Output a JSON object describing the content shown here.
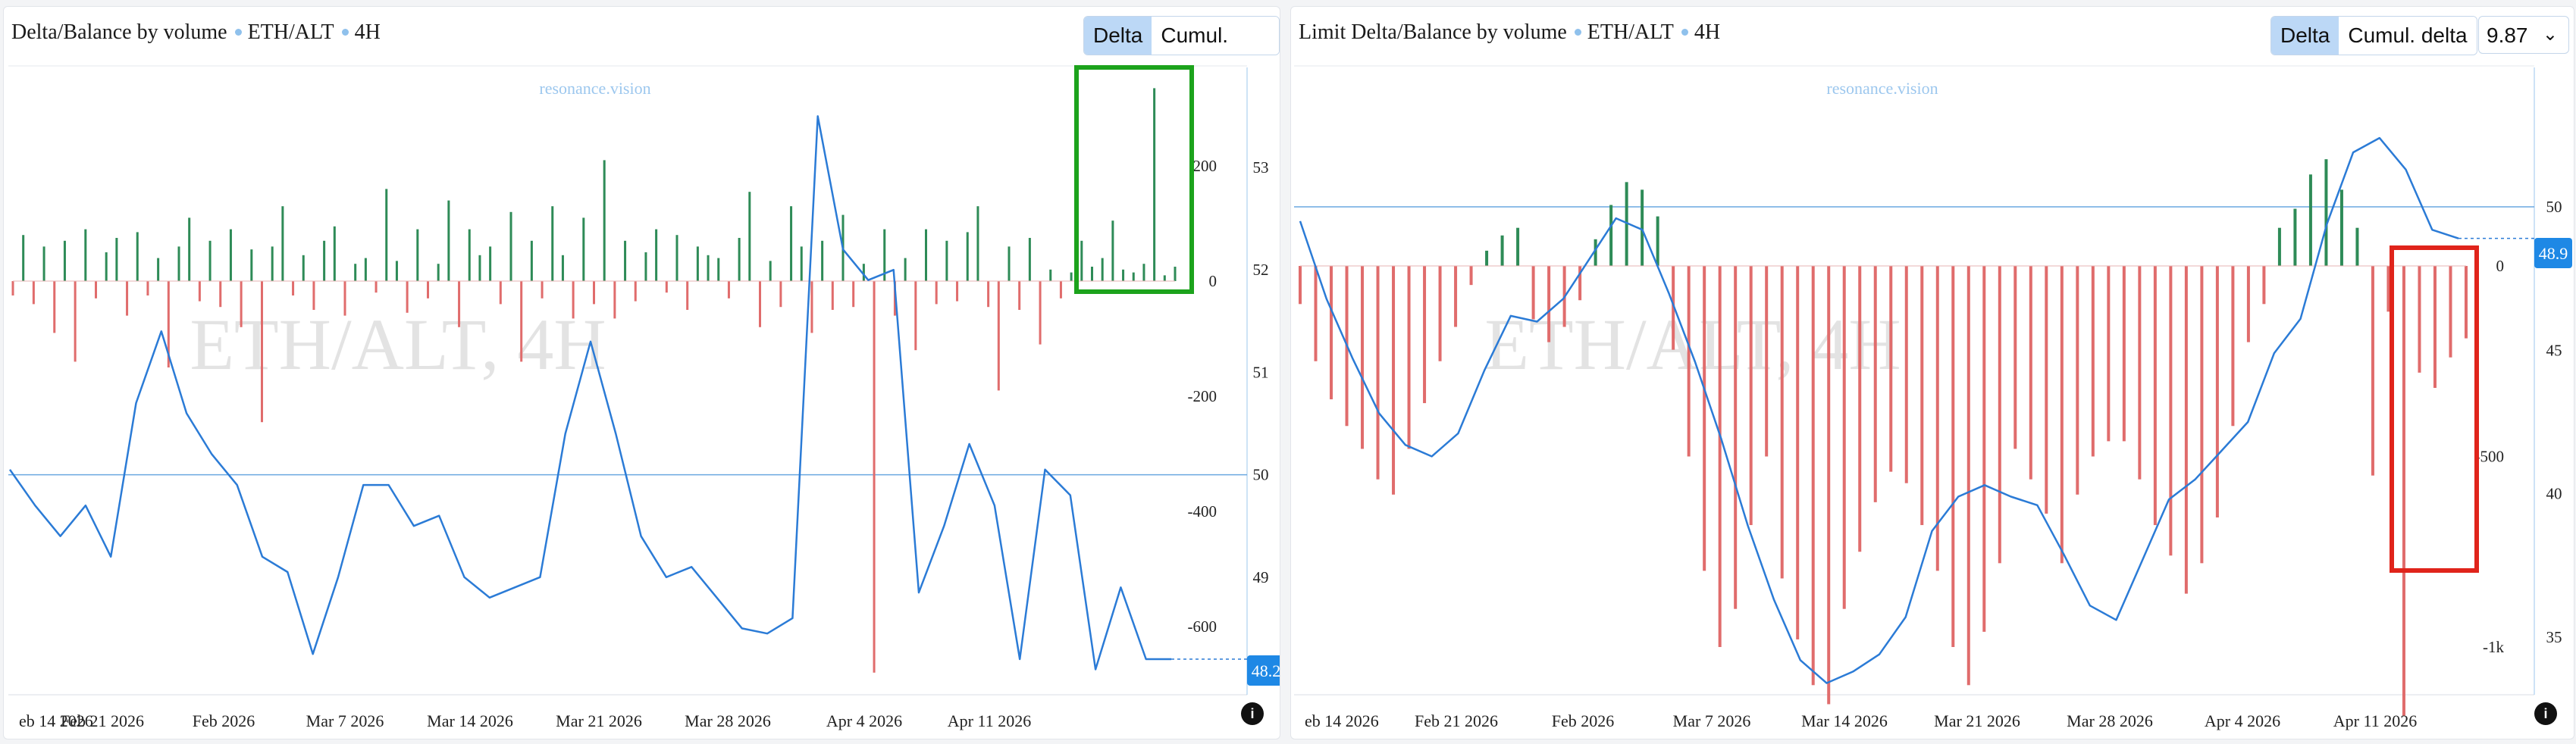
{
  "colors": {
    "up": "#2e8b57",
    "down": "#e06c6c",
    "line": "#2b7bd6",
    "hline": "#6aa8e0",
    "badge": "#1e88e5",
    "green_box": "#1ca31c",
    "red_box": "#e0241b",
    "watermark": "#e3e3e3",
    "brand": "#9cc7ee"
  },
  "panels": [
    {
      "title": "Delta/Balance by volume",
      "symbol": "ETH/ALT",
      "interval": "4H",
      "tabs": [
        {
          "label": "Delta",
          "active": true
        },
        {
          "label": "Cumul. delta",
          "active": false
        }
      ],
      "brand": "resonance.vision",
      "watermark": "ETH/ALT, 4H",
      "last_value": "48.2",
      "highlight": "green-box",
      "info_icon": "i",
      "chart_data": {
        "type": "bar+line",
        "x_labels": [
          "eb 14 2026",
          "Feb 21 2026",
          "Feb 2026",
          "Mar 7 2026",
          "Mar 14 2026",
          "Mar 21 2026",
          "Mar 28 2026",
          "Apr 4 2026",
          "Apr 11 2026"
        ],
        "delta_axis": {
          "ticks": [
            "200",
            "0",
            "-200",
            "-400",
            "-600"
          ],
          "range": [
            -680,
            330
          ]
        },
        "balance_axis": {
          "ticks": [
            "53",
            "52",
            "51",
            "50",
            "49",
            "48"
          ],
          "range": [
            47.9,
            53.8
          ]
        },
        "hline_balance": 50.0,
        "series": [
          {
            "name": "Delta (volume)",
            "kind": "bars",
            "values": [
              -25,
              80,
              -40,
              60,
              -90,
              70,
              -140,
              90,
              -30,
              50,
              75,
              -60,
              85,
              -25,
              40,
              -150,
              60,
              110,
              -35,
              70,
              -45,
              90,
              -80,
              55,
              -245,
              60,
              130,
              -25,
              45,
              -50,
              70,
              95,
              -60,
              30,
              40,
              -20,
              160,
              35,
              -55,
              90,
              -30,
              30,
              140,
              -80,
              90,
              45,
              60,
              -40,
              120,
              -140,
              70,
              -30,
              130,
              45,
              -65,
              110,
              -40,
              210,
              -65,
              70,
              -35,
              50,
              90,
              -20,
              80,
              -50,
              60,
              45,
              40,
              -30,
              75,
              155,
              -80,
              35,
              -45,
              130,
              60,
              -90,
              70,
              -50,
              115,
              -45,
              30,
              -680,
              90,
              -60,
              40,
              -120,
              90,
              -40,
              70,
              -35,
              85,
              130,
              -45,
              -190,
              60,
              -50,
              75,
              -110,
              20,
              -30,
              15,
              70,
              25,
              40,
              105,
              20,
              15,
              30,
              335,
              10,
              25
            ]
          },
          {
            "name": "Balance by volume",
            "kind": "line",
            "values": [
              50.05,
              49.7,
              49.4,
              49.7,
              49.2,
              50.7,
              51.4,
              50.6,
              50.2,
              49.9,
              49.2,
              49.05,
              48.25,
              49.0,
              49.9,
              49.9,
              49.5,
              49.6,
              49.0,
              48.8,
              48.9,
              49.0,
              50.4,
              51.3,
              50.4,
              49.4,
              49.0,
              49.1,
              48.8,
              48.5,
              48.45,
              48.6,
              53.5,
              52.2,
              51.9,
              52.0,
              48.85,
              49.5,
              50.3,
              49.7,
              48.2,
              50.05,
              49.8,
              48.1,
              48.9,
              48.2,
              48.2
            ]
          }
        ]
      }
    },
    {
      "title": "Limit Delta/Balance by volume",
      "symbol": "ETH/ALT",
      "interval": "4H",
      "tabs": [
        {
          "label": "Delta",
          "active": true
        },
        {
          "label": "Cumul. delta",
          "active": false
        }
      ],
      "select_value": "9.87",
      "brand": "resonance.vision",
      "watermark": "ETH/ALT, 4H",
      "last_value": "48.9",
      "highlight": "red-box",
      "info_icon": "i",
      "chart_data": {
        "type": "bar+line",
        "x_labels": [
          "eb 14 2026",
          "Feb 21 2026",
          "Feb 2026",
          "Mar 7 2026",
          "Mar 14 2026",
          "Mar 21 2026",
          "Mar 28 2026",
          "Apr 4 2026",
          "Apr 11 2026"
        ],
        "delta_axis": {
          "ticks": [
            "0",
            "-500",
            "-1k"
          ],
          "range": [
            -1180,
            230
          ]
        },
        "balance_axis": {
          "ticks": [
            "50",
            "45",
            "40",
            "35"
          ],
          "range": [
            32.4,
            52.6
          ]
        },
        "hline_balance": 50.0,
        "series": [
          {
            "name": "Limit delta",
            "kind": "bars",
            "values": [
              -100,
              -250,
              -350,
              -420,
              -480,
              -560,
              -600,
              -480,
              -360,
              -250,
              -160,
              -50,
              40,
              80,
              100,
              -140,
              -200,
              -160,
              -90,
              70,
              160,
              220,
              200,
              130,
              -220,
              -500,
              -800,
              -1000,
              -900,
              -680,
              -500,
              -820,
              -980,
              -1100,
              -1150,
              -900,
              -750,
              -620,
              -540,
              -570,
              -680,
              -800,
              -1000,
              -1100,
              -960,
              -780,
              -480,
              -560,
              -650,
              -780,
              -600,
              -500,
              -460,
              -460,
              -560,
              -680,
              -760,
              -860,
              -780,
              -660,
              -420,
              -200,
              -100,
              100,
              150,
              240,
              280,
              200,
              100,
              -550,
              -120,
              -1180,
              -280,
              -320,
              -240,
              -190
            ]
          },
          {
            "name": "Limit balance by volume",
            "kind": "line",
            "values": [
              49.5,
              46.8,
              44.7,
              42.8,
              41.7,
              41.3,
              42.1,
              44.3,
              46.2,
              46.0,
              46.8,
              48.2,
              49.6,
              49.2,
              47.0,
              44.6,
              41.9,
              38.9,
              36.3,
              34.2,
              33.4,
              33.8,
              34.4,
              35.7,
              38.7,
              39.9,
              40.3,
              39.9,
              39.6,
              37.9,
              36.1,
              35.6,
              37.7,
              39.8,
              40.5,
              41.5,
              42.5,
              44.9,
              46.1,
              49.4,
              51.9,
              52.4,
              51.3,
              49.2,
              48.9
            ]
          }
        ]
      }
    }
  ]
}
